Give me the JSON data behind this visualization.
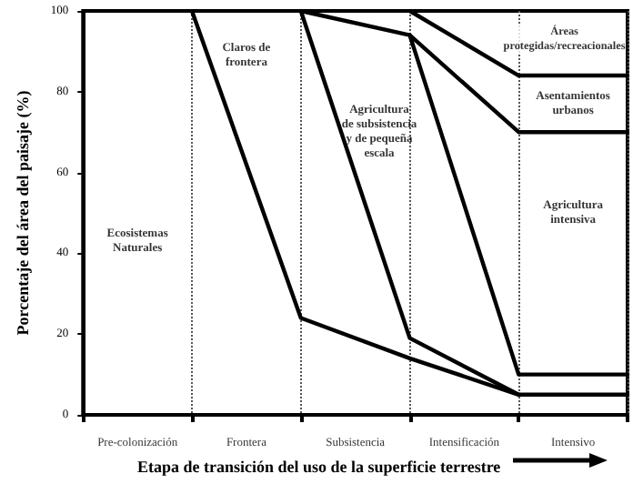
{
  "chart_data": {
    "type": "line",
    "xlabel": "Etapa de transición del uso de la superficie terrestre",
    "ylabel": "Porcentaje del área del paisaje (%)",
    "categories": [
      null,
      null,
      null,
      null,
      null,
      null
    ],
    "ylim": [
      0,
      100
    ],
    "yticks": [
      0,
      20,
      40,
      60,
      80,
      100
    ],
    "grid": "x",
    "marker": "none",
    "line_style": "solid",
    "series": [
      {
        "color": "#000000",
        "values": [
          null,
          100,
          24,
          14,
          5,
          5
        ]
      },
      {
        "color": "#000000",
        "values": [
          null,
          null,
          100,
          19,
          5,
          null
        ]
      },
      {
        "color": "#000000",
        "values": [
          null,
          null,
          100,
          94,
          10,
          10
        ]
      },
      {
        "color": "#000000",
        "values": [
          null,
          null,
          null,
          94,
          70,
          70
        ]
      },
      {
        "color": "#000000",
        "values": [
          null,
          null,
          null,
          100,
          84,
          84
        ]
      }
    ],
    "annotations": [
      "Pre-colonización",
      "Frontera",
      "Subsistencia",
      "Intensificación",
      "Intensivo",
      "Ecosistemas\nNaturales",
      "Claros de\nfrontera",
      "Agricultura\nde subsistencia\ny de pequeña\nescala",
      "Áreas\nprotegidas/recreacionales",
      "Asentamientos\nurbanos",
      "Agricultura\nintensiva"
    ]
  }
}
